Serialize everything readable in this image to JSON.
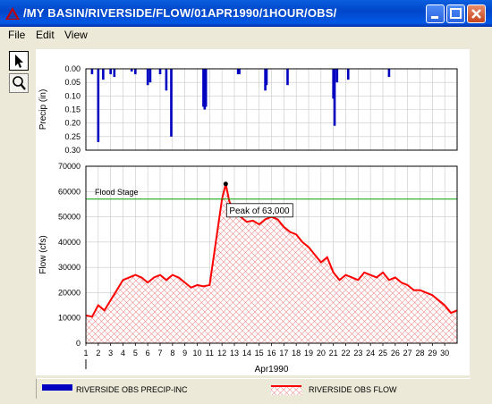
{
  "window": {
    "title": "/MY BASIN/RIVERSIDE/FLOW/01APR1990/1HOUR/OBS/"
  },
  "menu": {
    "file": "File",
    "edit": "Edit",
    "view": "View"
  },
  "tools": [
    {
      "name": "pointer-icon"
    },
    {
      "name": "zoom-icon"
    }
  ],
  "legend": {
    "precip": "RIVERSIDE OBS PRECIP-INC",
    "flow": "RIVERSIDE OBS FLOW"
  },
  "colors": {
    "precip": "#0000c0",
    "flow": "#ff0000",
    "flood": "#00a000"
  },
  "chart_data": [
    {
      "type": "bar",
      "ylabel": "Precip (in)",
      "ylim": [
        0.3,
        0.0
      ],
      "y_inverted": true,
      "yticks": [
        "0.00",
        "0.05",
        "0.10",
        "0.15",
        "0.20",
        "0.25",
        "0.30"
      ],
      "series": [
        {
          "name": "RIVERSIDE OBS PRECIP-INC",
          "x": [
            1.5,
            2.0,
            2.4,
            3.0,
            3.3,
            4.7,
            5.0,
            6.0,
            6.2,
            7.0,
            7.5,
            7.9,
            10.5,
            10.6,
            10.7,
            13.3,
            13.4,
            15.5,
            15.6,
            17.3,
            21.0,
            21.1,
            21.3,
            22.2,
            25.5
          ],
          "values": [
            0.02,
            0.27,
            0.04,
            0.02,
            0.03,
            0.01,
            0.02,
            0.06,
            0.05,
            0.02,
            0.08,
            0.25,
            0.14,
            0.15,
            0.14,
            0.02,
            0.02,
            0.08,
            0.06,
            0.06,
            0.11,
            0.21,
            0.05,
            0.04,
            0.03
          ]
        }
      ]
    },
    {
      "type": "area",
      "xlabel": "Apr1990",
      "ylabel": "Flow (cfs)",
      "xlim": [
        1,
        31
      ],
      "ylim": [
        0,
        70000
      ],
      "xticks": [
        "1",
        "2",
        "3",
        "4",
        "5",
        "6",
        "7",
        "8",
        "9",
        "10",
        "11",
        "12",
        "13",
        "14",
        "15",
        "16",
        "17",
        "18",
        "19",
        "20",
        "21",
        "22",
        "23",
        "24",
        "25",
        "26",
        "27",
        "28",
        "29",
        "30"
      ],
      "yticks": [
        "0",
        "10000",
        "20000",
        "30000",
        "40000",
        "50000",
        "60000",
        "70000"
      ],
      "flood_stage": {
        "label": "Flood Stage",
        "value": 57000
      },
      "annotation": {
        "label": "Peak of 63,000",
        "x": 12.3,
        "y": 63000
      },
      "series": [
        {
          "name": "RIVERSIDE OBS FLOW",
          "x": [
            1,
            1.5,
            2,
            2.5,
            3,
            3.5,
            4,
            4.5,
            5,
            5.5,
            6,
            6.5,
            7,
            7.5,
            8,
            8.5,
            9,
            9.5,
            10,
            10.5,
            11,
            11.5,
            12,
            12.3,
            12.6,
            13,
            13.5,
            14,
            14.5,
            15,
            15.5,
            16,
            16.5,
            17,
            17.5,
            18,
            18.5,
            19,
            19.5,
            20,
            20.5,
            21,
            21.5,
            22,
            22.5,
            23,
            23.5,
            24,
            24.5,
            25,
            25.5,
            26,
            26.5,
            27,
            27.5,
            28,
            28.5,
            29,
            29.5,
            30,
            30.5,
            31
          ],
          "values": [
            11000,
            10500,
            15000,
            13000,
            17000,
            21000,
            25000,
            26000,
            27000,
            26000,
            24000,
            26000,
            27000,
            25000,
            27000,
            26000,
            24000,
            22000,
            23000,
            22500,
            23000,
            40000,
            57000,
            63000,
            56000,
            52000,
            50000,
            48000,
            48500,
            47000,
            49000,
            50000,
            49000,
            46000,
            44000,
            43000,
            40000,
            38000,
            35000,
            32000,
            34000,
            28000,
            25000,
            27000,
            26000,
            25000,
            28000,
            27000,
            26000,
            28000,
            25000,
            26000,
            24000,
            23000,
            21000,
            21000,
            20000,
            19000,
            17000,
            15000,
            12000,
            13000
          ]
        }
      ]
    }
  ]
}
